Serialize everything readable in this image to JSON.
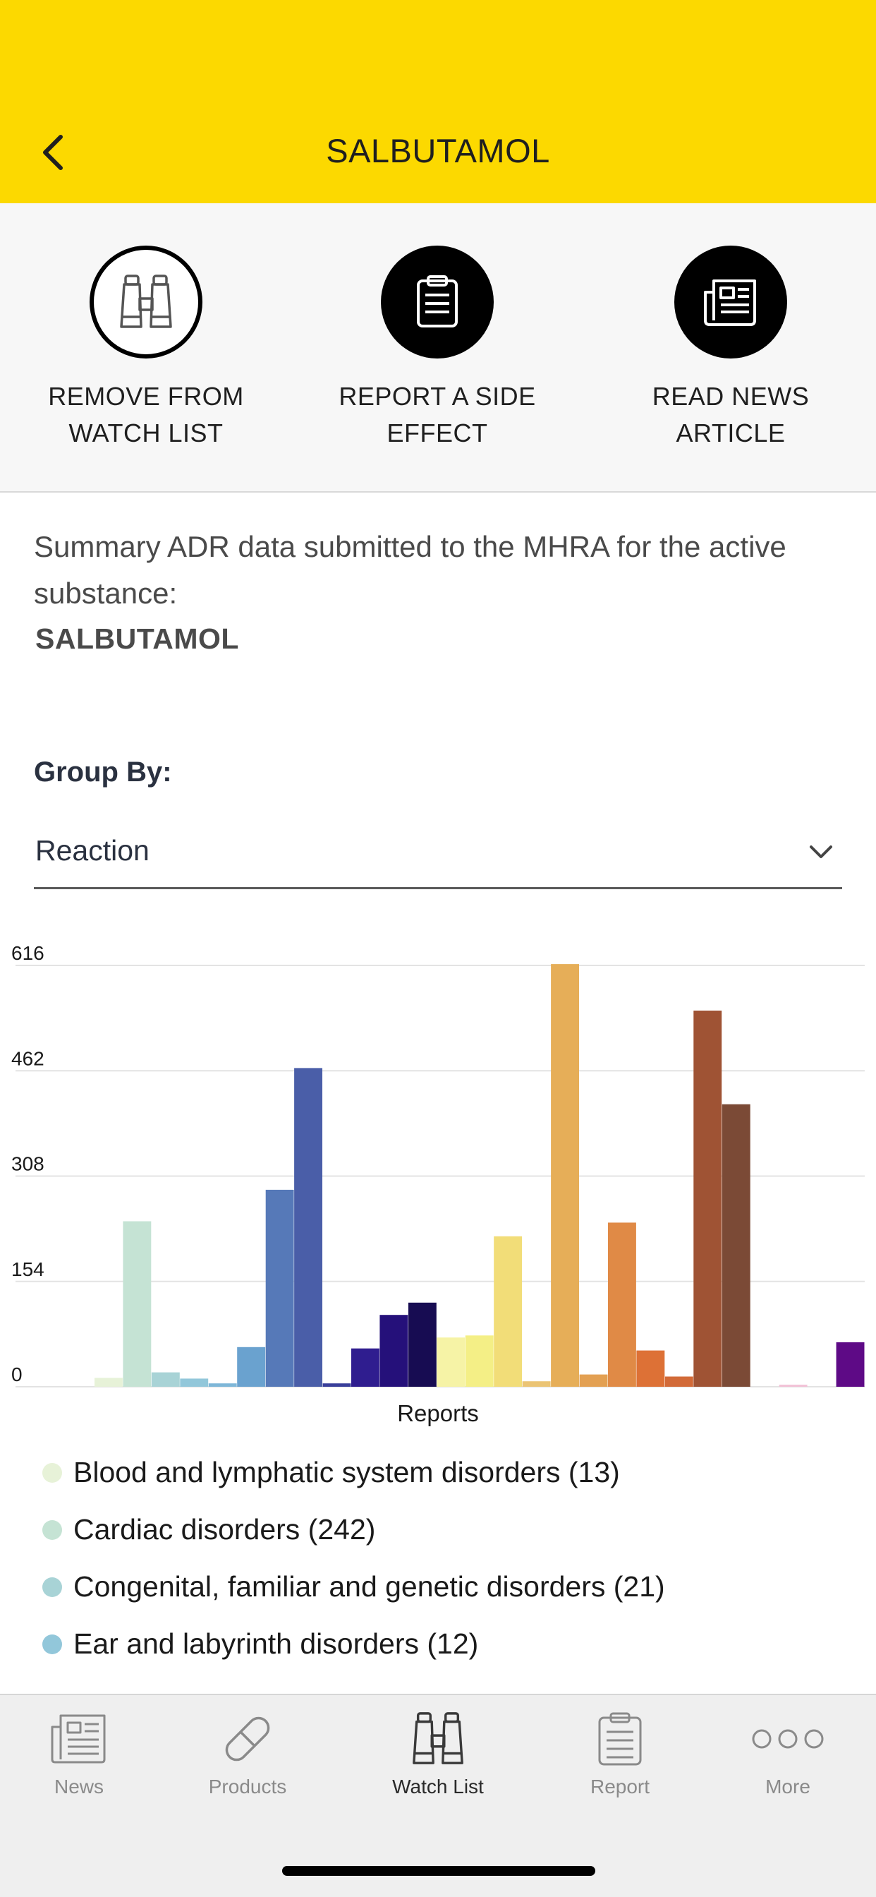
{
  "header": {
    "title": "SALBUTAMOL",
    "back_icon": "chevron-left-icon"
  },
  "actions": [
    {
      "label": "REMOVE FROM WATCH LIST",
      "icon": "binoculars-icon"
    },
    {
      "label": "REPORT A SIDE EFFECT",
      "icon": "clipboard-icon"
    },
    {
      "label": "READ NEWS ARTICLE",
      "icon": "newspaper-icon"
    }
  ],
  "summary": {
    "text": "Summary ADR data submitted to the MHRA for the active substance:",
    "substance": "SALBUTAMOL"
  },
  "group_by": {
    "label": "Group By:",
    "value": "Reaction"
  },
  "chart_data": {
    "type": "bar",
    "title": "",
    "xlabel": "Reports",
    "ylabel": "",
    "ylim": [
      0,
      616
    ],
    "yticks": [
      "616",
      "462",
      "308",
      "154",
      "0"
    ],
    "grid": true,
    "series": [
      {
        "name": "Reports",
        "values": [
          13,
          242,
          21,
          12,
          5,
          58,
          288,
          466,
          5,
          56,
          105,
          123,
          72,
          75,
          220,
          8,
          618,
          18,
          240,
          53,
          15,
          550,
          413,
          0,
          3,
          0,
          65
        ],
        "colors": [
          "#e7f2d8",
          "#c5e3d4",
          "#a8d3d6",
          "#92c7da",
          "#7fb7d8",
          "#6aa2cf",
          "#5679b8",
          "#4a5ea8",
          "#3a3f9a",
          "#2f1d8f",
          "#25107a",
          "#170c52",
          "#f6f3a6",
          "#f4ef86",
          "#f2dd78",
          "#ebc474",
          "#e6ae58",
          "#e3a052",
          "#e08a46",
          "#dd7136",
          "#d26a38",
          "#9f5334",
          "#7b4a36",
          "#6b4034",
          "#f2c1d6",
          "#ffffff",
          "#5e0a86"
        ]
      }
    ]
  },
  "legend": [
    {
      "label": "Blood and lymphatic system disorders (13)",
      "color": "#e7f2d8"
    },
    {
      "label": "Cardiac disorders (242)",
      "color": "#c5e3d4"
    },
    {
      "label": "Congenital, familiar and genetic disorders (21)",
      "color": "#a8d3d6"
    },
    {
      "label": "Ear and labyrinth disorders (12)",
      "color": "#92c7da"
    }
  ],
  "tabs": [
    {
      "label": "News",
      "icon": "newspaper-icon",
      "active": false
    },
    {
      "label": "Products",
      "icon": "pill-icon",
      "active": false
    },
    {
      "label": "Watch List",
      "icon": "binoculars-icon",
      "active": true
    },
    {
      "label": "Report",
      "icon": "clipboard-icon",
      "active": false
    },
    {
      "label": "More",
      "icon": "more-dots-icon",
      "active": false
    }
  ]
}
